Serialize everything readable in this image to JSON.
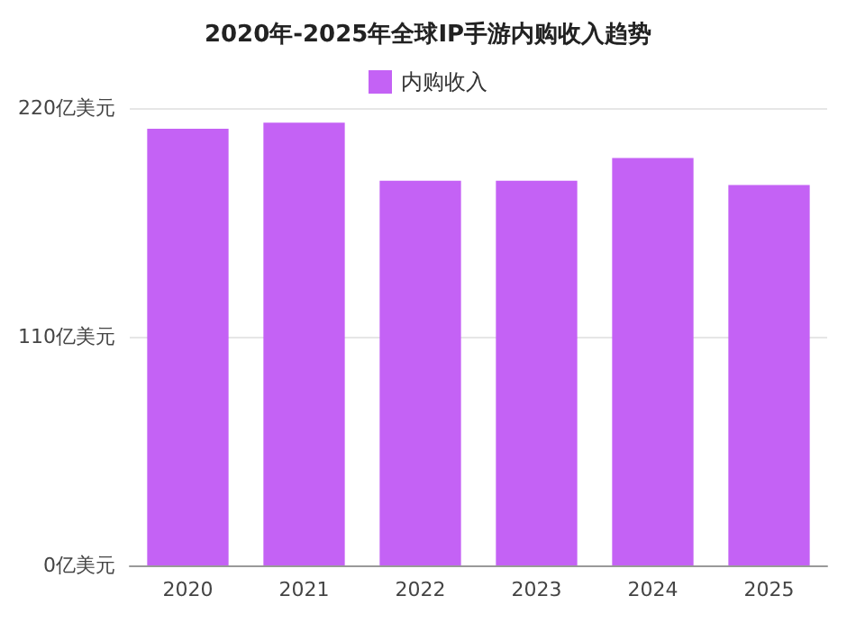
{
  "chart_data": {
    "type": "bar",
    "title": "2020年-2025年全球IP手游内购收入趋势",
    "categories": [
      "2020",
      "2021",
      "2022",
      "2023",
      "2024",
      "2025"
    ],
    "series": [
      {
        "name": "内购收入",
        "color": "#c462f5",
        "values": [
          210,
          213,
          185,
          185,
          196,
          183
        ]
      }
    ],
    "ylim": [
      0,
      220
    ],
    "yticks": [
      {
        "value": 0,
        "label": "0亿美元"
      },
      {
        "value": 110,
        "label": "110亿美元"
      },
      {
        "value": 220,
        "label": "220亿美元"
      }
    ],
    "grid": "y",
    "legend": "top"
  }
}
